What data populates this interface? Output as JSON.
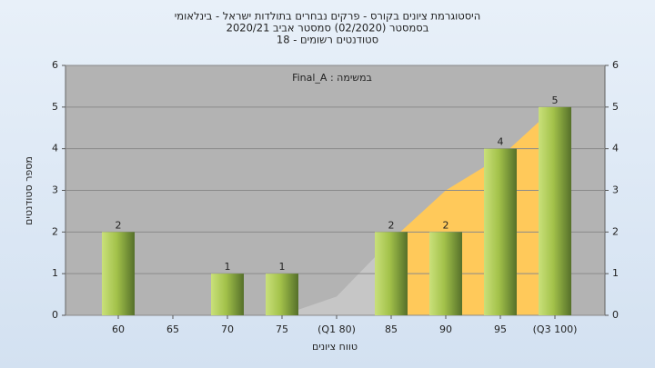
{
  "chart_data": {
    "type": "bar",
    "title": [
      "היסטוגרמת ציונים בקורס - פרקים נבחרים בתולדות ישראל - בינלאומי",
      "בסמסטר (02/2020) סמסטר אביב 2020/21",
      "סטודנטים רשומים - 18"
    ],
    "annotation": "במשימה : Final_A",
    "x_label": "טווח ציונים",
    "y_label": "מספר סטודנטים",
    "categories": [
      "60",
      "65",
      "70",
      "75",
      "(Q1 80)",
      "85",
      "90",
      "95",
      "(Q3 100)"
    ],
    "values": [
      2,
      0,
      1,
      1,
      0,
      2,
      2,
      4,
      5
    ],
    "color": "#9bbb3c",
    "areas": [
      {
        "color": "#c6c6c6",
        "values": [
          null,
          null,
          null,
          0,
          0.45,
          1.8,
          null,
          null,
          null
        ]
      },
      {
        "color": "#ffc95a",
        "values": [
          null,
          null,
          null,
          null,
          null,
          1.8,
          3,
          3.8,
          5
        ]
      }
    ],
    "ylim": [
      0,
      6
    ],
    "yticks": [
      0,
      1,
      2,
      3,
      4,
      5,
      6
    ],
    "y2lim": [
      0,
      6
    ],
    "y2ticks": [
      0,
      1,
      2,
      3,
      4,
      5,
      6
    ],
    "grid": true
  }
}
